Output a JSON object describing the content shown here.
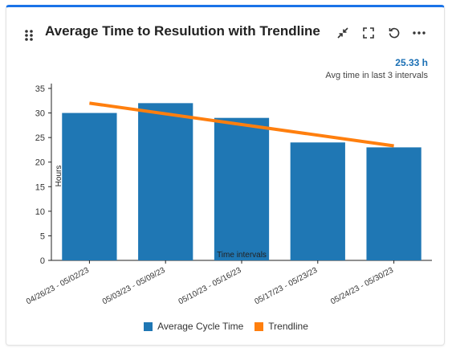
{
  "widget": {
    "title": "Average Time to Resulution with Trendline",
    "avg_value": "25.33 h",
    "avg_label": "Avg time in last 3 intervals"
  },
  "legend": {
    "bars_label": "Average Cycle Time",
    "trend_label": "Trendline"
  },
  "colors": {
    "bar": "#1f77b4",
    "trend": "#ff7f0e",
    "accent": "#1a73e8"
  },
  "chart_data": {
    "type": "bar",
    "categories": [
      "04/26/23 - 05/02/23",
      "05/03/23 - 05/09/23",
      "05/10/23 - 05/16/23",
      "05/17/23 - 05/23/23",
      "05/24/23 - 05/30/23"
    ],
    "series": [
      {
        "name": "Average Cycle Time",
        "values": [
          30,
          32,
          29,
          24,
          23
        ]
      },
      {
        "name": "Trendline",
        "type": "line",
        "values": [
          32,
          30.3,
          28.5,
          26,
          23.3
        ]
      }
    ],
    "xlabel": "Time intervals",
    "ylabel": "Hours",
    "ylim": [
      0,
      35
    ],
    "yticks": [
      0,
      5,
      10,
      15,
      20,
      25,
      30,
      35
    ],
    "legend": "bottom",
    "grid": false
  }
}
